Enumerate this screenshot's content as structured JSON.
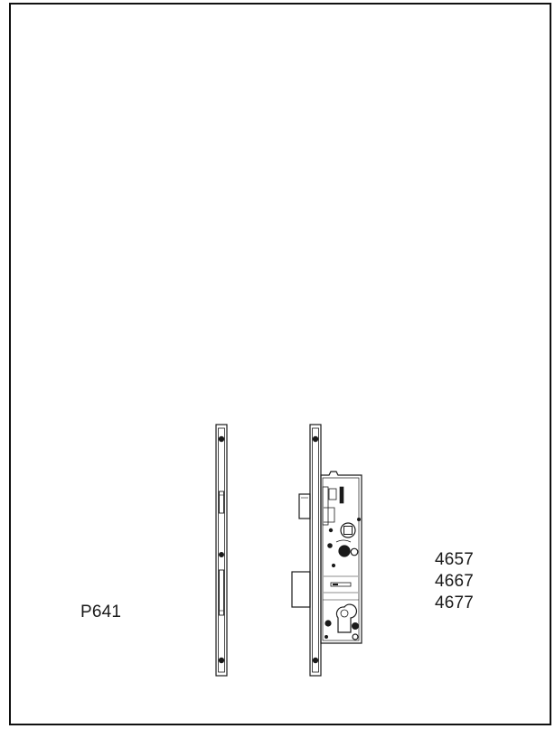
{
  "labels": {
    "strike_plate_code": "P641",
    "lock_codes": [
      "4657",
      "4667",
      "4677"
    ]
  },
  "colors": {
    "line": "#1a1a1a",
    "background": "#ffffff"
  }
}
